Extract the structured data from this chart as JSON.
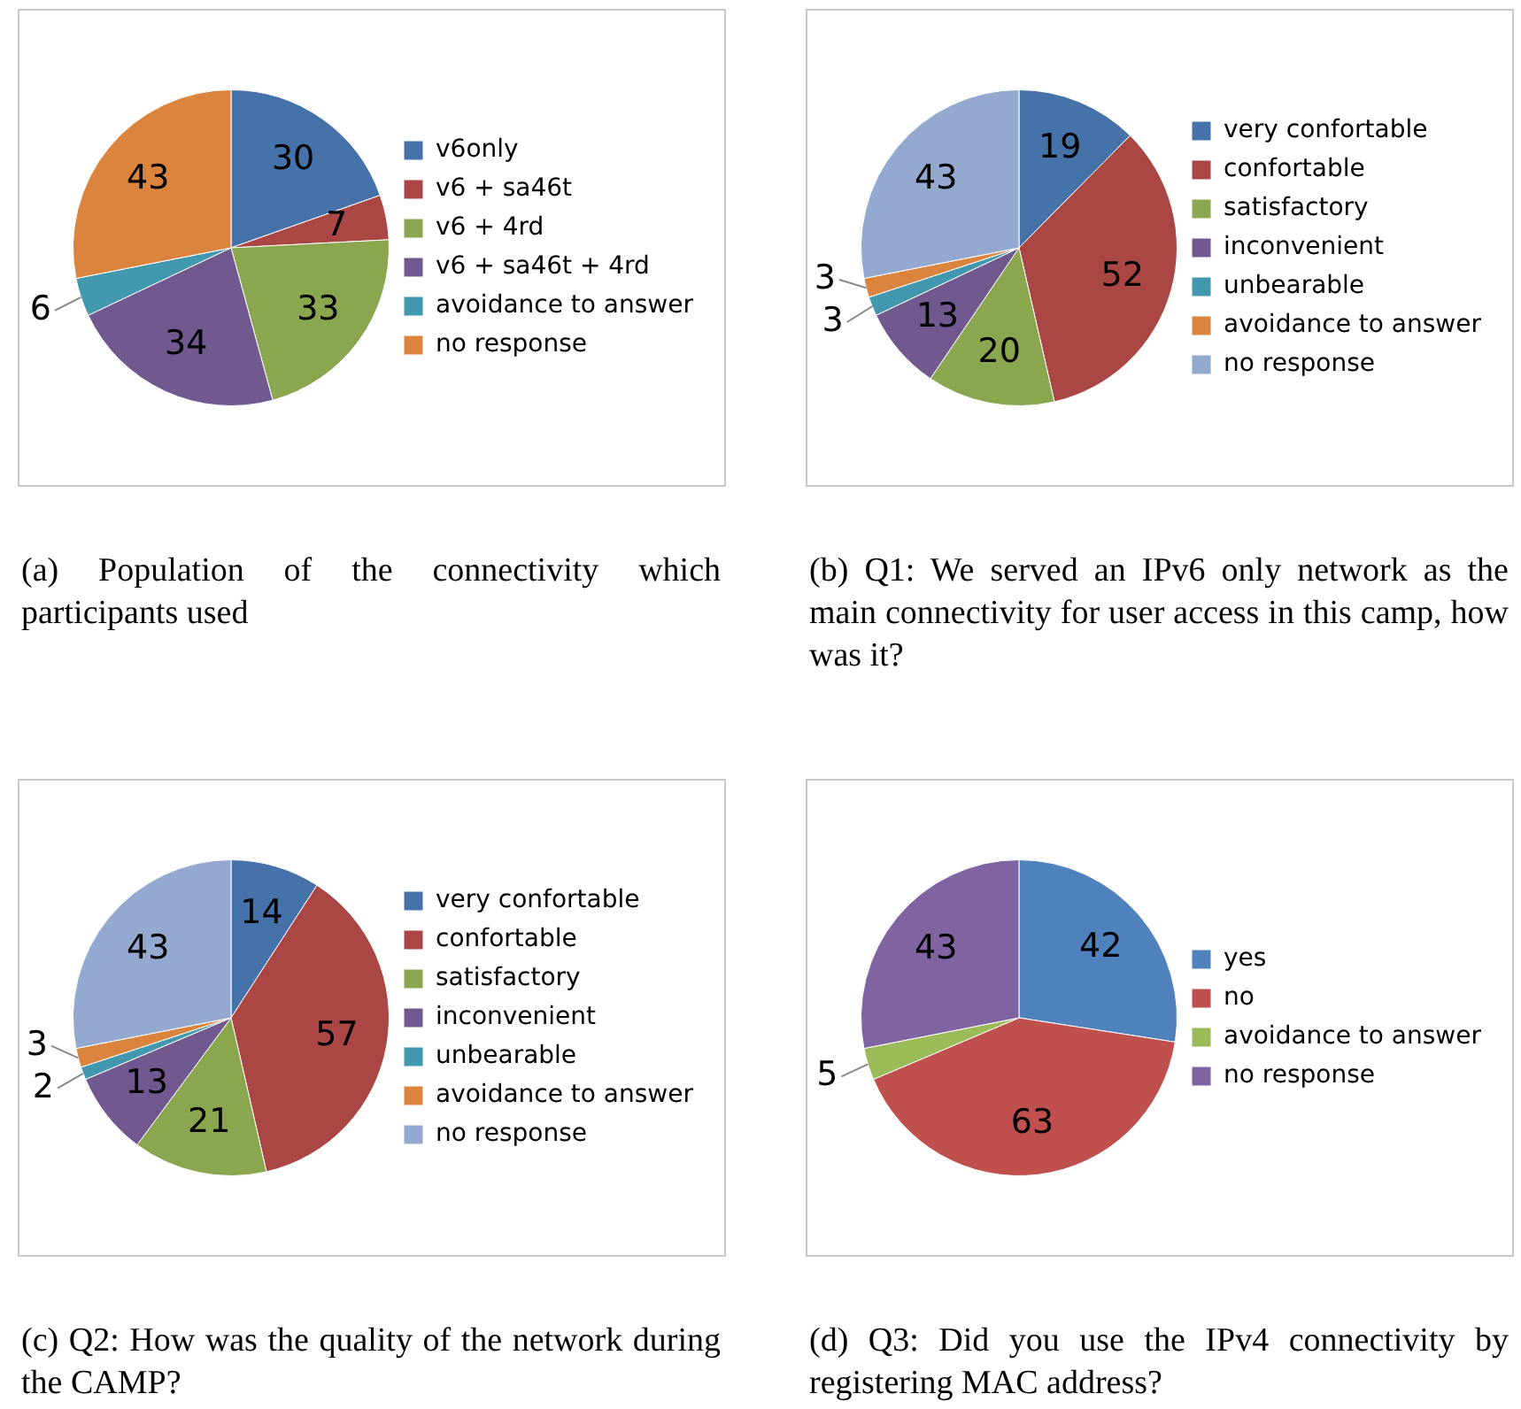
{
  "chart_data": [
    {
      "type": "pie",
      "title": "(a) Population of the connectivity which participants used",
      "categories": [
        "v6only",
        "v6 + sa46t",
        "v6 + 4rd",
        "v6 + sa46t + 4rd",
        "avoidance to answer",
        "no response"
      ],
      "values": [
        30,
        7,
        33,
        34,
        6,
        43
      ],
      "colors": [
        "#4672aa",
        "#aa4644",
        "#8aa64f",
        "#71588f",
        "#4198af",
        "#db843d"
      ],
      "data_labels": true,
      "legend": "right"
    },
    {
      "type": "pie",
      "title": "(b) Q1: We served an IPv6 only network as the main connectivity for user access in this camp, how was it?",
      "categories": [
        "very confortable",
        "confortable",
        "satisfactory",
        "inconvenient",
        "unbearable",
        "avoidance to answer",
        "no response"
      ],
      "values": [
        19,
        52,
        20,
        13,
        3,
        3,
        43
      ],
      "colors": [
        "#4672aa",
        "#aa4644",
        "#8aa64f",
        "#71588f",
        "#4198af",
        "#db843d",
        "#93a9cf"
      ],
      "data_labels": true,
      "legend": "right"
    },
    {
      "type": "pie",
      "title": "(c) Q2: How was the quality of the network during the CAMP?",
      "categories": [
        "very confortable",
        "confortable",
        "satisfactory",
        "inconvenient",
        "unbearable",
        "avoidance to answer",
        "no response"
      ],
      "values": [
        14,
        57,
        21,
        13,
        2,
        3,
        43
      ],
      "colors": [
        "#4672aa",
        "#aa4644",
        "#8aa64f",
        "#71588f",
        "#4198af",
        "#db843d",
        "#93a9cf"
      ],
      "data_labels": true,
      "legend": "right"
    },
    {
      "type": "pie",
      "title": "(d) Q3: Did you use the IPv4 connectivity by registering MAC address?",
      "categories": [
        "yes",
        "no",
        "avoidance to answer",
        "no response"
      ],
      "values": [
        42,
        63,
        5,
        43
      ],
      "colors": [
        "#4f81bd",
        "#c0504d",
        "#9bbb59",
        "#8064a2"
      ],
      "data_labels": true,
      "legend": "right"
    }
  ]
}
